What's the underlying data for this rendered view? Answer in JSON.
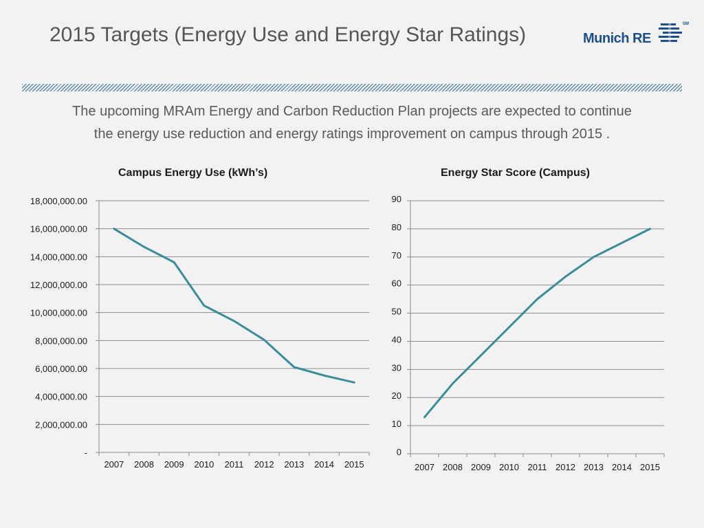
{
  "header": {
    "title": "2015 Targets (Energy Use and Energy Star Ratings)",
    "logo_text": "Munich RE",
    "logo_sm": "SM"
  },
  "intro": {
    "line1": "The upcoming MRAm Energy and Carbon Reduction Plan projects are expected to continue",
    "line2": "the energy use reduction and energy ratings improvement on campus through 2015 ."
  },
  "colors": {
    "line": "#3a8c9b",
    "grid": "#8c8c8c",
    "brand": "#1c4f8a"
  },
  "chart_data": [
    {
      "type": "line",
      "title": "Campus Energy Use (kWh’s)",
      "xlabel": "",
      "ylabel": "",
      "categories": [
        "2007",
        "2008",
        "2009",
        "2010",
        "2011",
        "2012",
        "2013",
        "2014",
        "2015"
      ],
      "series": [
        {
          "name": "Campus Energy Use",
          "values": [
            16000000,
            14700000,
            13600000,
            10500000,
            9400000,
            8050000,
            6100000,
            5500000,
            5000000
          ]
        }
      ],
      "ylim": [
        0,
        18000000
      ],
      "yticks": [
        0,
        2000000,
        4000000,
        6000000,
        8000000,
        10000000,
        12000000,
        14000000,
        16000000,
        18000000
      ],
      "ytick_labels": [
        "-",
        "2,000,000.00",
        "4,000,000.00",
        "6,000,000.00",
        "8,000,000.00",
        "10,000,000.00",
        "12,000,000.00",
        "14,000,000.00",
        "16,000,000.00",
        "18,000,000.00"
      ],
      "grid": true,
      "legend": "none"
    },
    {
      "type": "line",
      "title": "Energy Star Score (Campus)",
      "xlabel": "",
      "ylabel": "",
      "categories": [
        "2007",
        "2008",
        "2009",
        "2010",
        "2011",
        "2012",
        "2013",
        "2014",
        "2015"
      ],
      "series": [
        {
          "name": "Energy Star Score",
          "values": [
            13,
            25,
            35,
            45,
            55,
            63,
            70,
            75,
            80
          ]
        }
      ],
      "ylim": [
        0,
        90
      ],
      "yticks": [
        0,
        10,
        20,
        30,
        40,
        50,
        60,
        70,
        80,
        90
      ],
      "ytick_labels": [
        "0",
        "10",
        "20",
        "30",
        "40",
        "50",
        "60",
        "70",
        "80",
        "90"
      ],
      "grid": true,
      "legend": "none"
    }
  ]
}
